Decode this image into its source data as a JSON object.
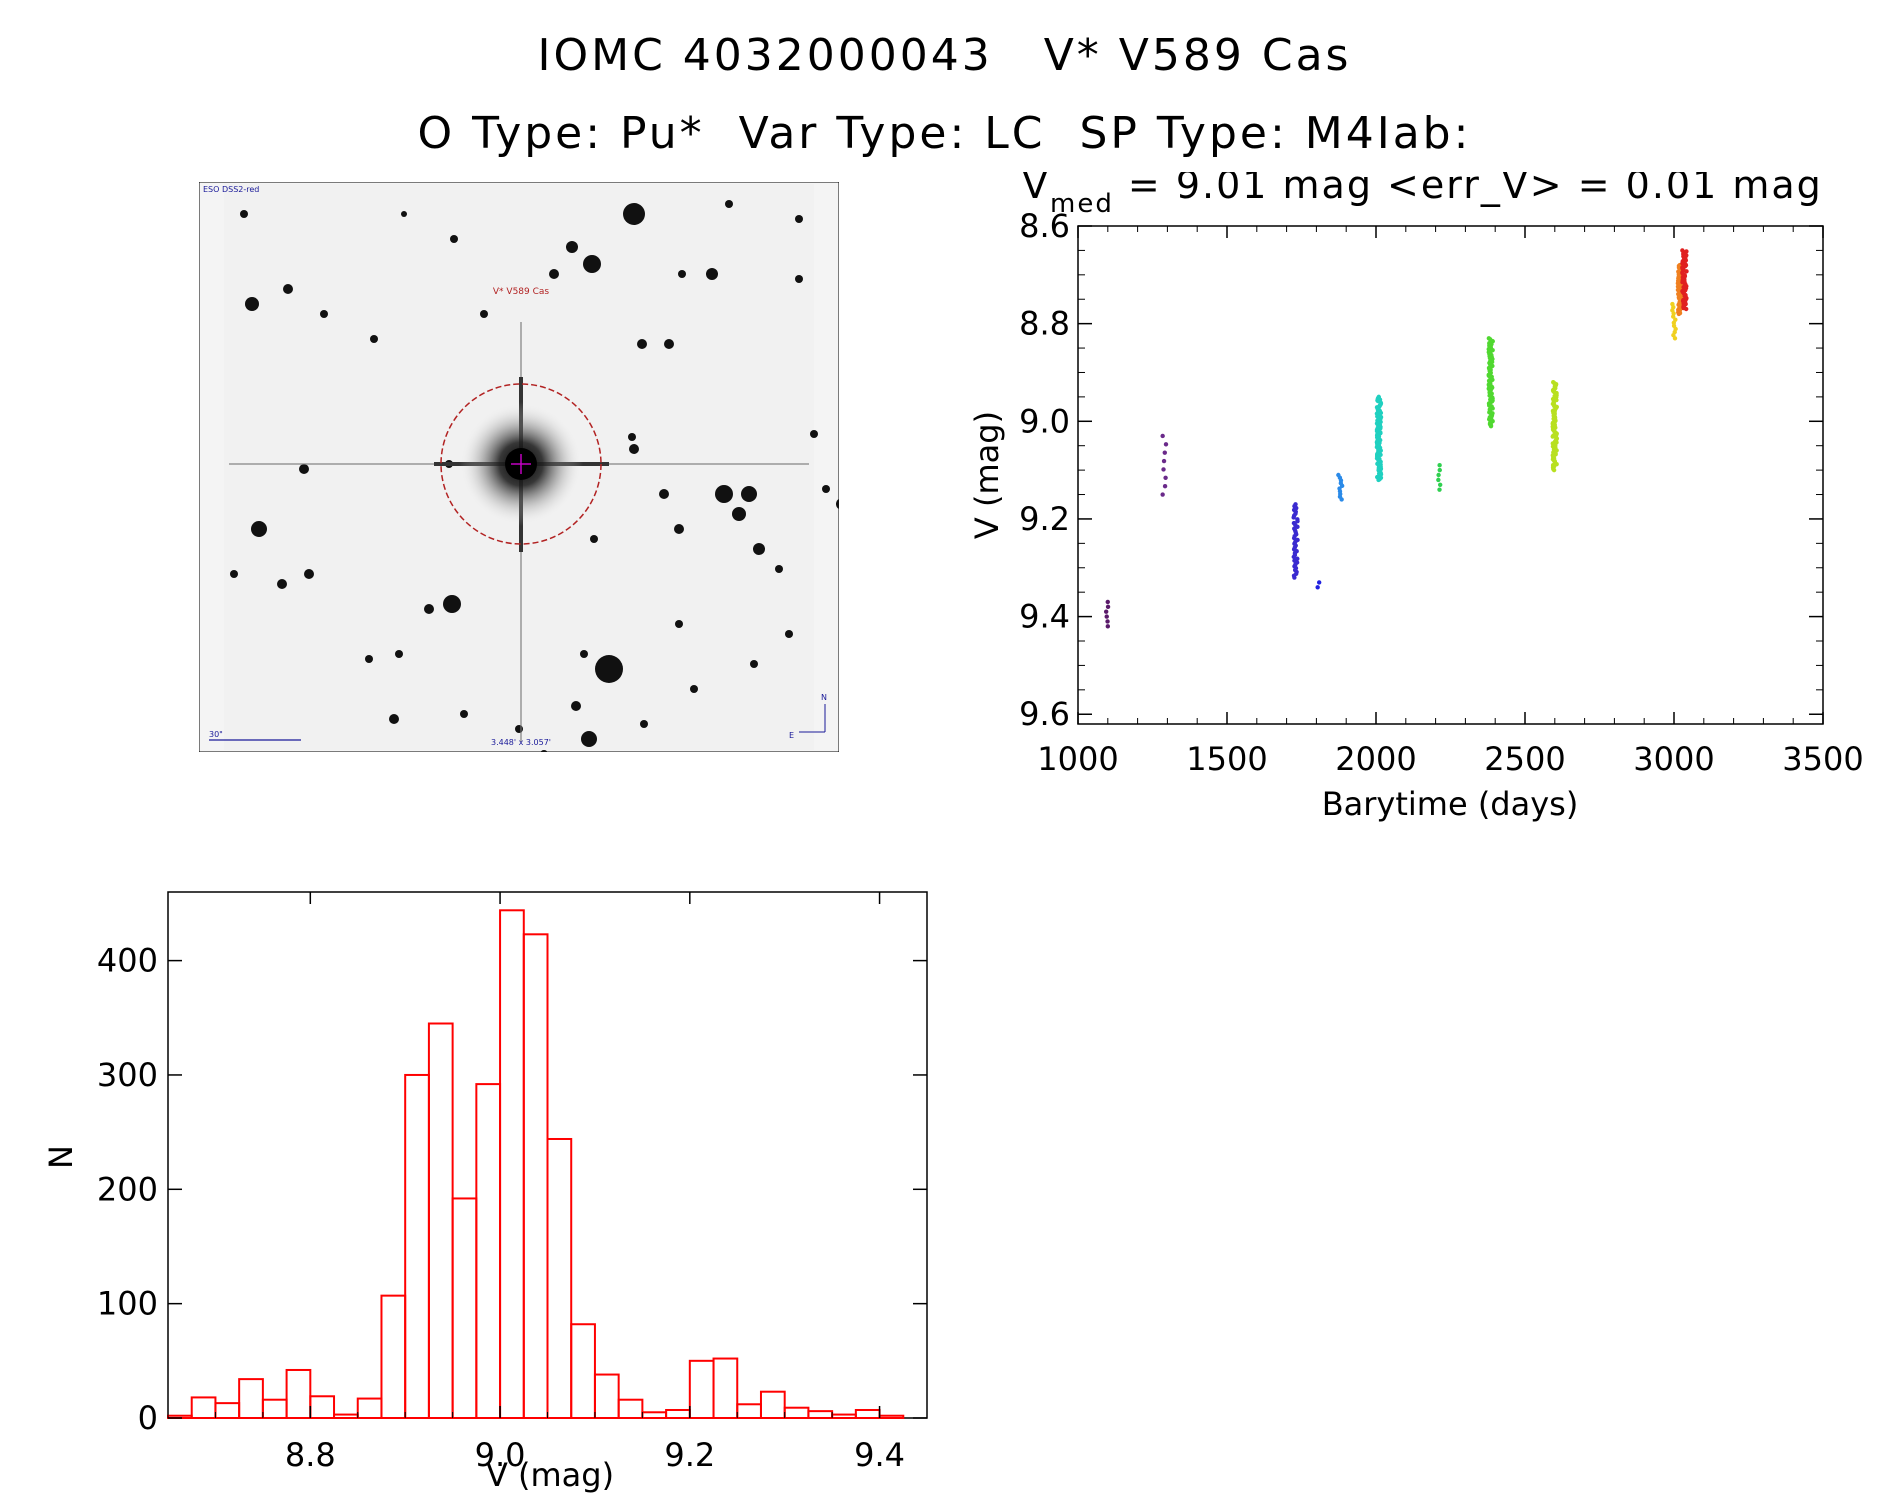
{
  "titles": {
    "line1": "IOMC 4032000043   V* V589 Cas",
    "line2": "O Type: Pu*  Var Type: LC  SP Type: M4Iab:"
  },
  "sky_image": {
    "survey_label": "ESO DSS2-red",
    "target_label": "V* V589 Cas",
    "scale_label": "30\"",
    "fov_label": "3.448' x 3.057'",
    "north_label": "N",
    "east_label": "E",
    "circle_color": "#b22222",
    "marker_color": "#c000c0"
  },
  "chart_data": [
    {
      "type": "scatter",
      "title_prefix": "V",
      "title_subscript": "med",
      "title_rest": " = 9.01 mag <err_V> = 0.01 mag",
      "xlabel": "Barytime (days)",
      "ylabel": "V (mag)",
      "xlim": [
        1000,
        3500
      ],
      "ylim": [
        9.62,
        8.6
      ],
      "y_inverted": true,
      "xticks": [
        1000,
        1500,
        2000,
        2500,
        3000,
        3500
      ],
      "yticks": [
        "8.6",
        "8.8",
        "9.0",
        "9.2",
        "9.4",
        "9.6"
      ],
      "color_scale": "rainbow by time",
      "clusters": [
        {
          "x": 1100,
          "y_min": 9.37,
          "y_max": 9.42,
          "n": 6,
          "color": "#5a1a6a"
        },
        {
          "x": 1290,
          "y_min": 9.03,
          "y_max": 9.15,
          "n": 8,
          "color": "#6a2a8a"
        },
        {
          "x": 1730,
          "y_min": 9.17,
          "y_max": 9.32,
          "n": 40,
          "color": "#3a2ad0"
        },
        {
          "x": 1810,
          "y_min": 9.33,
          "y_max": 9.34,
          "n": 2,
          "color": "#2020e0"
        },
        {
          "x": 1880,
          "y_min": 9.11,
          "y_max": 9.16,
          "n": 10,
          "color": "#2a8ae8"
        },
        {
          "x": 2010,
          "y_min": 8.95,
          "y_max": 9.12,
          "n": 120,
          "color": "#20d0c0"
        },
        {
          "x": 2210,
          "y_min": 9.09,
          "y_max": 9.14,
          "n": 6,
          "color": "#30d050"
        },
        {
          "x": 2385,
          "y_min": 8.83,
          "y_max": 9.01,
          "n": 90,
          "color": "#50d830"
        },
        {
          "x": 2600,
          "y_min": 8.92,
          "y_max": 9.1,
          "n": 90,
          "color": "#b8e020"
        },
        {
          "x": 3000,
          "y_min": 8.76,
          "y_max": 8.83,
          "n": 12,
          "color": "#f0d020"
        },
        {
          "x": 3020,
          "y_min": 8.68,
          "y_max": 8.78,
          "n": 60,
          "color": "#f08020"
        },
        {
          "x": 3035,
          "y_min": 8.65,
          "y_max": 8.77,
          "n": 60,
          "color": "#e02020"
        }
      ]
    },
    {
      "type": "bar",
      "subtype": "histogram",
      "xlabel": "V (mag)",
      "ylabel": "N",
      "xlim": [
        8.65,
        9.45
      ],
      "ylim": [
        0,
        460
      ],
      "xticks": [
        "8.8",
        "9.0",
        "9.2",
        "9.4"
      ],
      "yticks": [
        "0",
        "100",
        "200",
        "300",
        "400"
      ],
      "bar_color": "#ff0000",
      "bin_start": 8.65,
      "bin_width": 0.025,
      "values": [
        2,
        18,
        13,
        34,
        16,
        42,
        19,
        3,
        17,
        107,
        300,
        345,
        192,
        292,
        444,
        423,
        244,
        82,
        38,
        16,
        5,
        7,
        50,
        52,
        12,
        23,
        9,
        6,
        3,
        7,
        2
      ]
    }
  ]
}
